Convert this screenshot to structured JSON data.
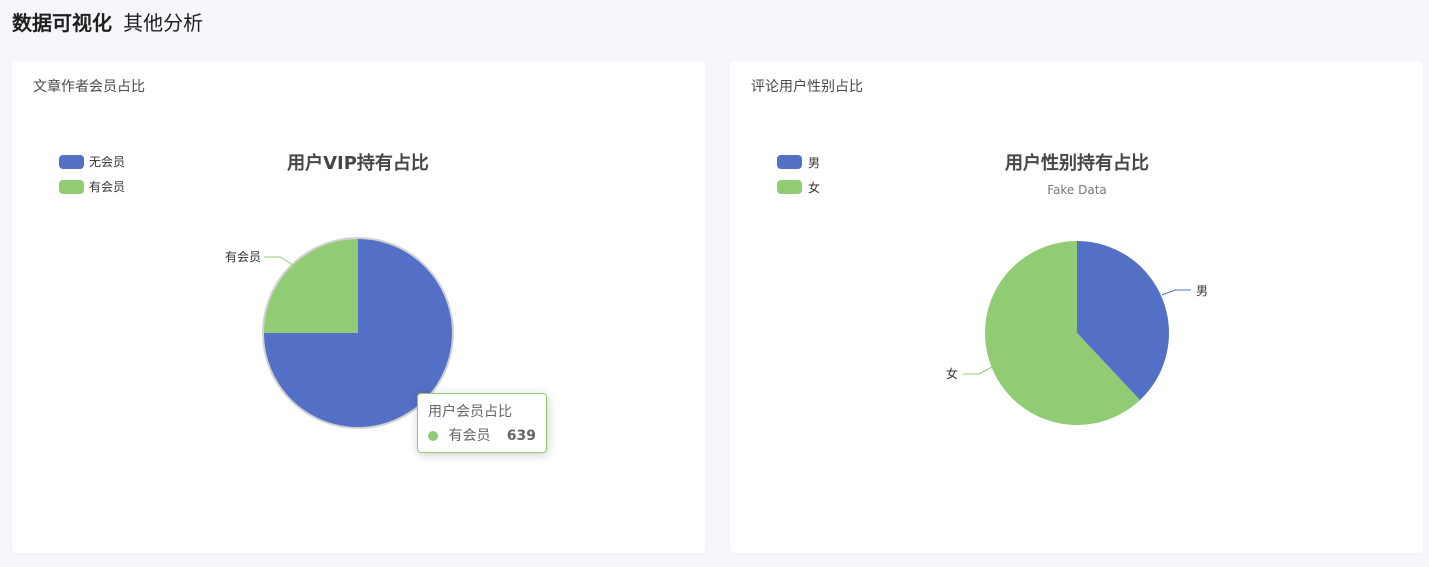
{
  "header": {
    "main_title": "数据可视化",
    "sub_title": "其他分析"
  },
  "colors": {
    "blue": "#5470c6",
    "green": "#91cc75"
  },
  "cards": [
    {
      "card_title": "文章作者会员占比",
      "tooltip": {
        "title": "用户会员占比",
        "name": "有会员",
        "value": "639"
      }
    },
    {
      "card_title": "评论用户性别占比"
    }
  ],
  "chart_data": [
    {
      "type": "pie",
      "title": "用户VIP持有占比",
      "subtitle": "",
      "legend": [
        "无会员",
        "有会员"
      ],
      "legend_position": "top-left",
      "series": [
        {
          "name": "无会员",
          "value": 1917,
          "color": "#5470c6"
        },
        {
          "name": "有会员",
          "value": 639,
          "color": "#91cc75"
        }
      ],
      "outside_labels": [
        "有会员"
      ]
    },
    {
      "type": "pie",
      "title": "用户性别持有占比",
      "subtitle": "Fake Data",
      "legend": [
        "男",
        "女"
      ],
      "legend_position": "top-left",
      "series": [
        {
          "name": "男",
          "value": 38,
          "color": "#5470c6"
        },
        {
          "name": "女",
          "value": 62,
          "color": "#91cc75"
        }
      ],
      "outside_labels": [
        "男",
        "女"
      ]
    }
  ]
}
